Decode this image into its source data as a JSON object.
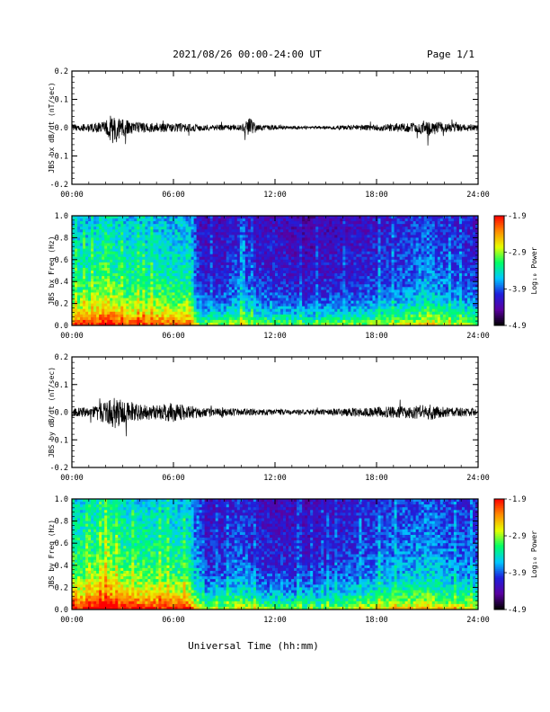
{
  "header": {
    "title": "2021/08/26  00:00-24:00 UT",
    "page": "Page 1/1"
  },
  "x_axis": {
    "label": "Universal Time (hh:mm)",
    "ticks": [
      "00:00",
      "06:00",
      "12:00",
      "18:00",
      "24:00"
    ],
    "range_hours": [
      0,
      24
    ]
  },
  "colorbar": {
    "label": "Log₁₀ Power",
    "ticks": [
      "-1.9",
      "-2.9",
      "-3.9",
      "-4.9"
    ],
    "range": [
      -4.9,
      -1.9
    ],
    "colormap": [
      "#000000",
      "#5a00a0",
      "#1f1fdc",
      "#00c8ff",
      "#00ff66",
      "#e6ff00",
      "#ff8c00",
      "#ff0000"
    ]
  },
  "chart_data": [
    {
      "type": "line",
      "ylabel": "JBS bx dB/dt (nT/sec)",
      "ylim": [
        -0.2,
        0.2
      ],
      "yticks": [
        "0.2",
        "0.1",
        "0.0",
        "-0.1",
        "-0.2"
      ],
      "color": "#000000",
      "envelope": {
        "x_hours": [
          0,
          1,
          2,
          2.5,
          3,
          4,
          5,
          6,
          7,
          8,
          9,
          10,
          10.5,
          11,
          12,
          13,
          14,
          15,
          16,
          17,
          18,
          19,
          20,
          21,
          22,
          23,
          24
        ],
        "amplitude": [
          0.012,
          0.015,
          0.022,
          0.065,
          0.03,
          0.018,
          0.016,
          0.016,
          0.015,
          0.01,
          0.01,
          0.011,
          0.035,
          0.01,
          0.008,
          0.007,
          0.006,
          0.006,
          0.008,
          0.01,
          0.011,
          0.014,
          0.016,
          0.03,
          0.016,
          0.014,
          0.012
        ]
      }
    },
    {
      "type": "heatmap",
      "ylabel": "JBS bx Freq (Hz)",
      "ylim": [
        0.0,
        1.0
      ],
      "yticks": [
        "1.0",
        "0.8",
        "0.6",
        "0.4",
        "0.2",
        "0.0"
      ],
      "activity": {
        "x_hours": [
          0,
          1,
          2,
          3,
          4,
          5,
          6,
          7,
          7.5,
          8,
          9,
          10,
          11,
          12,
          13,
          14,
          15,
          16,
          17,
          18,
          19,
          20,
          21,
          22,
          23,
          24
        ],
        "level": [
          0.62,
          0.6,
          0.7,
          0.6,
          0.6,
          0.6,
          0.58,
          0.58,
          0.3,
          0.28,
          0.3,
          0.38,
          0.3,
          0.3,
          0.27,
          0.25,
          0.27,
          0.28,
          0.3,
          0.33,
          0.35,
          0.38,
          0.45,
          0.38,
          0.35,
          0.33
        ]
      }
    },
    {
      "type": "line",
      "ylabel": "JBS by dB/dt (nT/sec)",
      "ylim": [
        -0.2,
        0.2
      ],
      "yticks": [
        "0.2",
        "0.1",
        "0.0",
        "-0.1",
        "-0.2"
      ],
      "color": "#000000",
      "envelope": {
        "x_hours": [
          0,
          1,
          2,
          2.5,
          3,
          4,
          5,
          6,
          7,
          8,
          9,
          10,
          11,
          12,
          13,
          14,
          15,
          16,
          17,
          18,
          19,
          20,
          21,
          22,
          23,
          24
        ],
        "amplitude": [
          0.015,
          0.018,
          0.04,
          0.06,
          0.045,
          0.03,
          0.028,
          0.035,
          0.025,
          0.015,
          0.016,
          0.014,
          0.012,
          0.01,
          0.01,
          0.009,
          0.01,
          0.014,
          0.017,
          0.02,
          0.02,
          0.022,
          0.03,
          0.018,
          0.016,
          0.014
        ]
      }
    },
    {
      "type": "heatmap",
      "ylabel": "JBS by Freq (Hz)",
      "ylim": [
        0.0,
        1.0
      ],
      "yticks": [
        "1.0",
        "0.8",
        "0.6",
        "0.4",
        "0.2",
        "0.0"
      ],
      "activity": {
        "x_hours": [
          0,
          1,
          2,
          3,
          4,
          5,
          6,
          7,
          7.5,
          8,
          9,
          10,
          11,
          12,
          13,
          14,
          15,
          16,
          17,
          18,
          19,
          20,
          21,
          22,
          23,
          24
        ],
        "level": [
          0.66,
          0.64,
          0.75,
          0.66,
          0.64,
          0.64,
          0.62,
          0.6,
          0.32,
          0.3,
          0.32,
          0.4,
          0.3,
          0.3,
          0.28,
          0.27,
          0.3,
          0.32,
          0.36,
          0.4,
          0.42,
          0.44,
          0.48,
          0.42,
          0.4,
          0.38
        ]
      }
    }
  ]
}
